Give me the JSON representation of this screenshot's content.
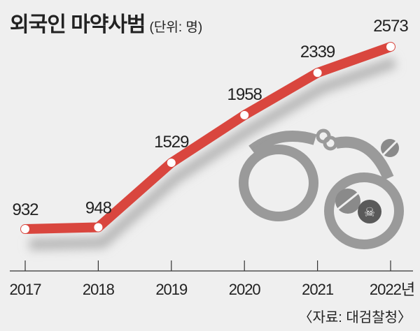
{
  "chart_data": {
    "type": "line",
    "title": "외국인 마약사범",
    "unit": "(단위: 명)",
    "categories": [
      "2017",
      "2018",
      "2019",
      "2020",
      "2021",
      "2022년"
    ],
    "values": [
      932,
      948,
      1529,
      1958,
      2339,
      2573
    ],
    "ylim": [
      555,
      2600
    ],
    "grid": false,
    "source": "〈자료: 대검찰청〉",
    "colors": {
      "line": "#d9463e",
      "background": "#efefef",
      "illustration": "#9a9a9a"
    }
  }
}
